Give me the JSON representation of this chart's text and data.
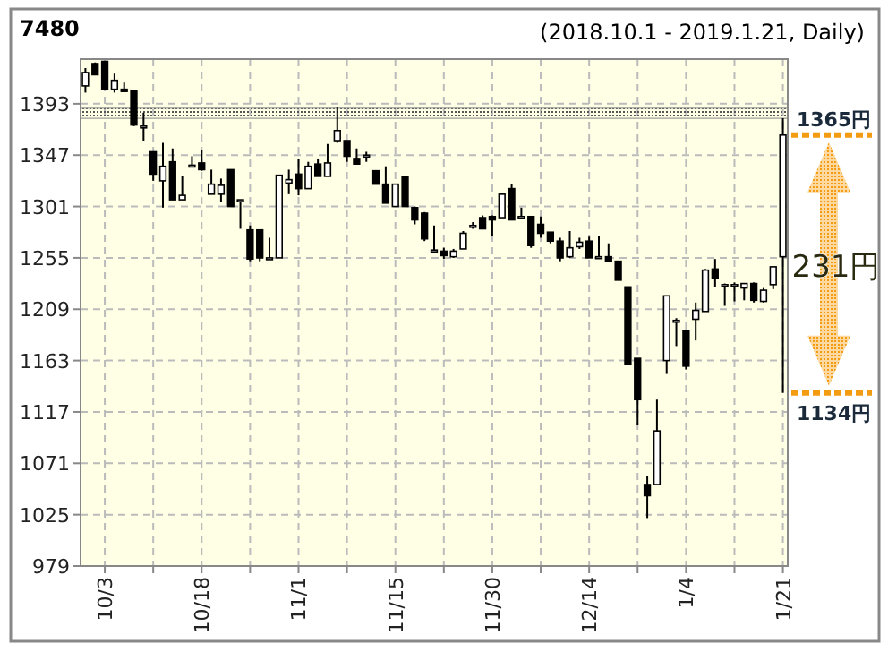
{
  "chart_data": {
    "type": "candlestick",
    "title": "7480",
    "subtitle": "(2018.10.1 - 2019.1.21, Daily)",
    "categories": [
      null,
      null,
      "10/3",
      null,
      null,
      null,
      null,
      null,
      null,
      null,
      null,
      null,
      "10/18",
      null,
      null,
      null,
      null,
      null,
      null,
      null,
      null,
      null,
      "11/1",
      null,
      null,
      null,
      null,
      null,
      null,
      null,
      null,
      null,
      "11/15",
      null,
      null,
      null,
      null,
      null,
      null,
      null,
      null,
      null,
      "11/30",
      null,
      null,
      null,
      null,
      null,
      null,
      null,
      null,
      null,
      "12/14",
      null,
      null,
      null,
      null,
      null,
      null,
      null,
      null,
      null,
      "1/4",
      null,
      null,
      null,
      null,
      null,
      null,
      null,
      null,
      null,
      "1/21"
    ],
    "ohlc": [
      [
        1409,
        1425,
        1403,
        1421
      ],
      [
        1429,
        1430,
        1419,
        1419
      ],
      [
        1431,
        1431,
        1406,
        1406
      ],
      [
        1406,
        1420,
        1403,
        1414
      ],
      [
        1406,
        1412,
        1404,
        1404
      ],
      [
        1405,
        1405,
        1373,
        1374
      ],
      [
        1373,
        1385,
        1360,
        1373
      ],
      [
        1350,
        1350,
        1324,
        1330
      ],
      [
        1324,
        1358,
        1300,
        1337
      ],
      [
        1341,
        1353,
        1307,
        1307
      ],
      [
        1307,
        1328,
        1307,
        1311
      ],
      [
        1338,
        1346,
        1336,
        1338
      ],
      [
        1340,
        1352,
        1333,
        1334
      ],
      [
        1312,
        1334,
        1312,
        1321
      ],
      [
        1312,
        1326,
        1305,
        1320
      ],
      [
        1334,
        1334,
        1301,
        1301
      ],
      [
        1307,
        1307,
        1281,
        1307
      ],
      [
        1280,
        1284,
        1252,
        1254
      ],
      [
        1280,
        1280,
        1252,
        1255
      ],
      [
        1255,
        1273,
        1255,
        1255
      ],
      [
        1255,
        1329,
        1255,
        1329
      ],
      [
        1322,
        1334,
        1312,
        1325
      ],
      [
        1330,
        1344,
        1311,
        1317
      ],
      [
        1317,
        1341,
        1317,
        1337
      ],
      [
        1339,
        1344,
        1328,
        1328
      ],
      [
        1328,
        1357,
        1328,
        1340
      ],
      [
        1360,
        1390,
        1358,
        1369
      ],
      [
        1360,
        1360,
        1341,
        1346
      ],
      [
        1344,
        1353,
        1339,
        1339
      ],
      [
        1347,
        1350,
        1341,
        1347
      ],
      [
        1333,
        1333,
        1321,
        1321
      ],
      [
        1321,
        1337,
        1304,
        1304
      ],
      [
        1301,
        1321,
        1301,
        1321
      ],
      [
        1328,
        1328,
        1301,
        1301
      ],
      [
        1300,
        1301,
        1285,
        1289
      ],
      [
        1295,
        1296,
        1270,
        1272
      ],
      [
        1262,
        1284,
        1260,
        1262
      ],
      [
        1261,
        1264,
        1254,
        1257
      ],
      [
        1256,
        1263,
        1255,
        1261
      ],
      [
        1263,
        1279,
        1263,
        1277
      ],
      [
        1284,
        1287,
        1281,
        1284
      ],
      [
        1291,
        1293,
        1281,
        1281
      ],
      [
        1292,
        1293,
        1275,
        1289
      ],
      [
        1291,
        1313,
        1291,
        1312
      ],
      [
        1317,
        1321,
        1289,
        1289
      ],
      [
        1292,
        1300,
        1291,
        1292
      ],
      [
        1292,
        1292,
        1264,
        1266
      ],
      [
        1285,
        1292,
        1273,
        1277
      ],
      [
        1278,
        1278,
        1268,
        1270
      ],
      [
        1270,
        1273,
        1252,
        1255
      ],
      [
        1256,
        1279,
        1255,
        1264
      ],
      [
        1265,
        1273,
        1263,
        1269
      ],
      [
        1270,
        1274,
        1255,
        1255
      ],
      [
        1256,
        1275,
        1255,
        1256
      ],
      [
        1256,
        1268,
        1252,
        1252
      ],
      [
        1252,
        1252,
        1235,
        1235
      ],
      [
        1229,
        1229,
        1160,
        1160
      ],
      [
        1165,
        1165,
        1105,
        1128
      ],
      [
        1052,
        1060,
        1022,
        1042
      ],
      [
        1052,
        1128,
        1052,
        1100
      ],
      [
        1163,
        1221,
        1151,
        1221
      ],
      [
        1199,
        1201,
        1176,
        1199
      ],
      [
        1190,
        1190,
        1155,
        1158
      ],
      [
        1200,
        1215,
        1181,
        1208
      ],
      [
        1207,
        1245,
        1207,
        1244
      ],
      [
        1245,
        1254,
        1229,
        1237
      ],
      [
        1231,
        1232,
        1212,
        1231
      ],
      [
        1231,
        1233,
        1216,
        1231
      ],
      [
        1228,
        1232,
        1217,
        1232
      ],
      [
        1232,
        1233,
        1215,
        1217
      ],
      [
        1216,
        1228,
        1215,
        1226
      ],
      [
        1231,
        1247,
        1227,
        1247
      ],
      [
        1256,
        1380,
        1134,
        1365
      ]
    ],
    "ylim": [
      979,
      1433
    ],
    "yticks": [
      979,
      1025,
      1071,
      1117,
      1163,
      1209,
      1255,
      1301,
      1347,
      1393
    ],
    "grid": true,
    "bands": [
      {
        "axis": "y",
        "from": 1380,
        "to": 1389,
        "color": "#888888"
      }
    ],
    "annotations": [
      "1365円",
      "1134円",
      "231円"
    ]
  }
}
